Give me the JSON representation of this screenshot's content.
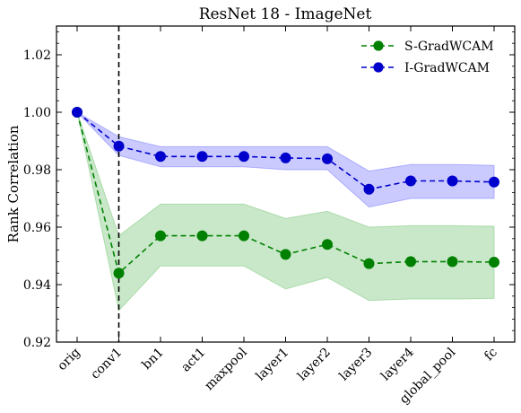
{
  "chart_data": {
    "type": "line",
    "title": "ResNet 18 - ImageNet",
    "xlabel": "",
    "ylabel": "Rank Correlation",
    "categories": [
      "orig",
      "conv1",
      "bn1",
      "act1",
      "maxpool",
      "layer1",
      "layer2",
      "layer3",
      "layer4",
      "global_pool",
      "fc"
    ],
    "ylim": [
      0.92,
      1.03
    ],
    "yticks": [
      0.92,
      0.94,
      0.96,
      0.98,
      1.0,
      1.02
    ],
    "ytick_labels": [
      "0.92",
      "0.94",
      "0.96",
      "0.98",
      "1.00",
      "1.02"
    ],
    "vline_at": "conv1",
    "legend_position": "top-right",
    "grid": false,
    "series": [
      {
        "name": "S-GradWCAM",
        "color": "#008000",
        "fill_color": "#7fc97f",
        "values": [
          1.0,
          0.944,
          0.957,
          0.957,
          0.957,
          0.9505,
          0.954,
          0.9473,
          0.948,
          0.948,
          0.9478
        ],
        "lower": [
          1.0,
          0.931,
          0.9465,
          0.9465,
          0.9465,
          0.9385,
          0.9425,
          0.9345,
          0.935,
          0.935,
          0.9352
        ],
        "upper": [
          1.0,
          0.957,
          0.968,
          0.968,
          0.968,
          0.963,
          0.9655,
          0.96,
          0.9605,
          0.9605,
          0.9603
        ]
      },
      {
        "name": "I-GradWCAM",
        "color": "#0000cc",
        "fill_color": "#8080ff",
        "values": [
          1.0,
          0.9882,
          0.9846,
          0.9846,
          0.9846,
          0.9841,
          0.9838,
          0.9732,
          0.9761,
          0.9761,
          0.9757
        ],
        "lower": [
          1.0,
          0.985,
          0.981,
          0.981,
          0.981,
          0.98,
          0.98,
          0.967,
          0.97,
          0.97,
          0.97
        ],
        "upper": [
          1.0,
          0.9915,
          0.988,
          0.988,
          0.988,
          0.988,
          0.988,
          0.9795,
          0.9818,
          0.9818,
          0.9815
        ]
      }
    ]
  }
}
